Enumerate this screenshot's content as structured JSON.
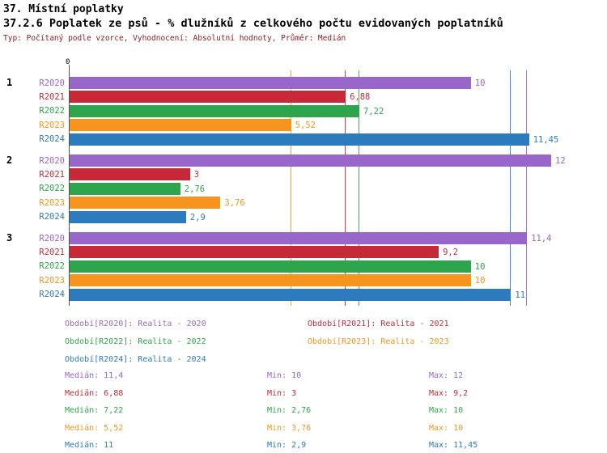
{
  "header": {
    "title_line1": "37. Místní poplatky",
    "title_line2": "37.2.6 Poplatek ze psů - % dlužníků z celkového počtu evidovaných poplatníků",
    "subtitle": "Typ: Počítaný podle vzorce, Vyhodnocení: Absolutní hodnoty, Průměr: Medián"
  },
  "chart_data": {
    "type": "bar",
    "orientation": "horizontal",
    "title": "37.2.6 Poplatek ze psů - % dlužníků z celkového počtu evidovaných poplatníků",
    "origin_tick_label": "0",
    "x_range": [
      0,
      13.2
    ],
    "grid": "vertical median reference line per series",
    "legend_position": "bottom",
    "categories": [
      "1",
      "2",
      "3"
    ],
    "series": [
      {
        "name": "R2020",
        "legend": "Období[R2020]: Realita - 2020",
        "color": "#9966CC",
        "values": [
          10,
          12,
          11.4
        ],
        "value_labels": [
          "10",
          "12",
          "11,4"
        ],
        "median": 11.4,
        "stats": {
          "median": "11,4",
          "min": "10",
          "max": "12"
        }
      },
      {
        "name": "R2021",
        "legend": "Období[R2021]: Realita - 2021",
        "color": "#C62A39",
        "values": [
          6.88,
          3,
          9.2
        ],
        "value_labels": [
          "6,88",
          "3",
          "9,2"
        ],
        "median": 6.88,
        "stats": {
          "median": "6,88",
          "min": "3",
          "max": "9,2"
        }
      },
      {
        "name": "R2022",
        "legend": "Období[R2022]: Realita - 2022",
        "color": "#2EA44C",
        "values": [
          7.22,
          2.76,
          10
        ],
        "value_labels": [
          "7,22",
          "2,76",
          "10"
        ],
        "median": 7.22,
        "stats": {
          "median": "7,22",
          "min": "2,76",
          "max": "10"
        }
      },
      {
        "name": "R2023",
        "legend": "Období[R2023]: Realita - 2023",
        "color": "#F7941E",
        "values": [
          5.52,
          3.76,
          10
        ],
        "value_labels": [
          "5,52",
          "3,76",
          "10"
        ],
        "median": 5.52,
        "stats": {
          "median": "5,52",
          "min": "3,76",
          "max": "10"
        }
      },
      {
        "name": "R2024",
        "legend": "Období[R2024]: Realita - 2024",
        "color": "#2D7BBF",
        "values": [
          11.45,
          2.9,
          11
        ],
        "value_labels": [
          "11,45",
          "2,9",
          "11"
        ],
        "median": 11,
        "stats": {
          "median": "11",
          "min": "2,9",
          "max": "11,45"
        }
      }
    ],
    "stats_labels": {
      "median": "Medián",
      "min": "Min",
      "max": "Max"
    }
  }
}
